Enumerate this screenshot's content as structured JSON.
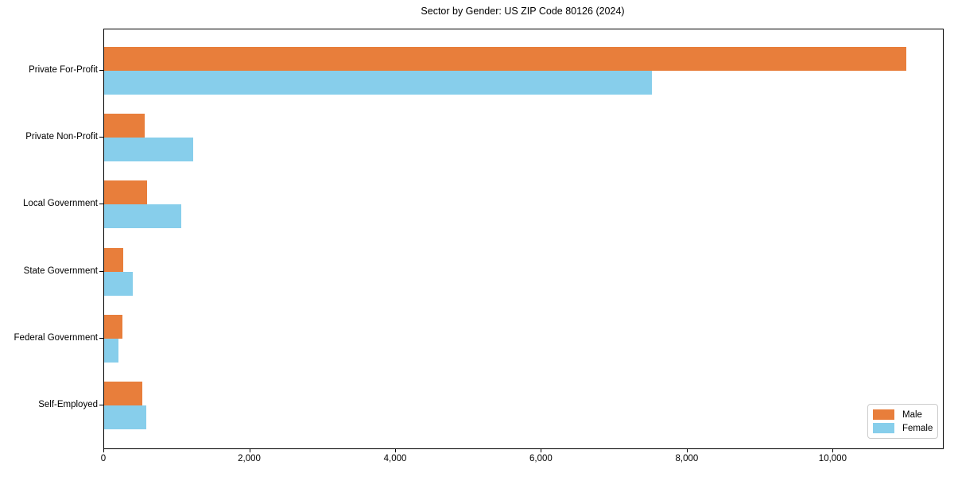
{
  "chart_data": {
    "type": "bar",
    "orientation": "horizontal",
    "title": "Sector by Gender: US ZIP Code 80126 (2024)",
    "categories": [
      "Private For-Profit",
      "Private Non-Profit",
      "Local Government",
      "State Government",
      "Federal Government",
      "Self-Employed"
    ],
    "series": [
      {
        "name": "Male",
        "color": "#e87e3b",
        "values": [
          11000,
          560,
          590,
          265,
          245,
          525
        ]
      },
      {
        "name": "Female",
        "color": "#87ceeb",
        "values": [
          7510,
          1220,
          1060,
          395,
          195,
          580
        ]
      }
    ],
    "xlabel": "",
    "ylabel": "",
    "xlim": [
      0,
      11500
    ],
    "xticks": [
      {
        "value": 0,
        "label": "0"
      },
      {
        "value": 2000,
        "label": "2,000"
      },
      {
        "value": 4000,
        "label": "4,000"
      },
      {
        "value": 6000,
        "label": "6,000"
      },
      {
        "value": 8000,
        "label": "8,000"
      },
      {
        "value": 10000,
        "label": "10,000"
      }
    ],
    "grid": false,
    "legend_position": "lower right",
    "plot_border_color": "#000000",
    "background_color": "#ffffff"
  }
}
